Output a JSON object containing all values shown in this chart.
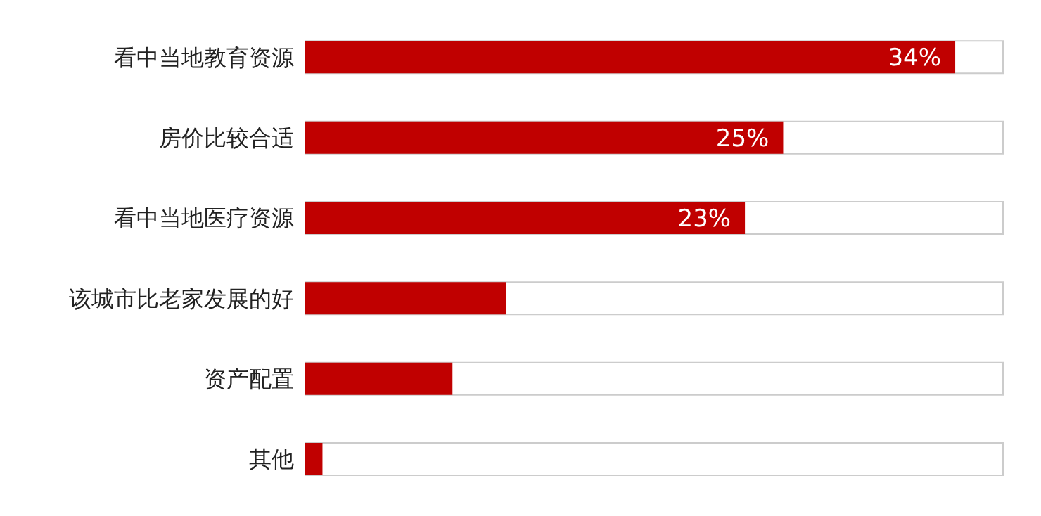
{
  "chart_data": {
    "type": "bar",
    "orientation": "horizontal",
    "categories": [
      "看中当地教育资源",
      "房价比较合适",
      "看中当地医疗资源",
      "该城市比老家发展的好",
      "资产配置",
      "其他"
    ],
    "values": [
      34,
      25,
      23,
      10.5,
      7.7,
      0.9
    ],
    "value_labels": [
      "34%",
      "25%",
      "23%",
      null,
      null,
      null
    ],
    "color": "#c00000",
    "xlim": [
      0,
      36.5
    ],
    "tick_labels": "y"
  }
}
